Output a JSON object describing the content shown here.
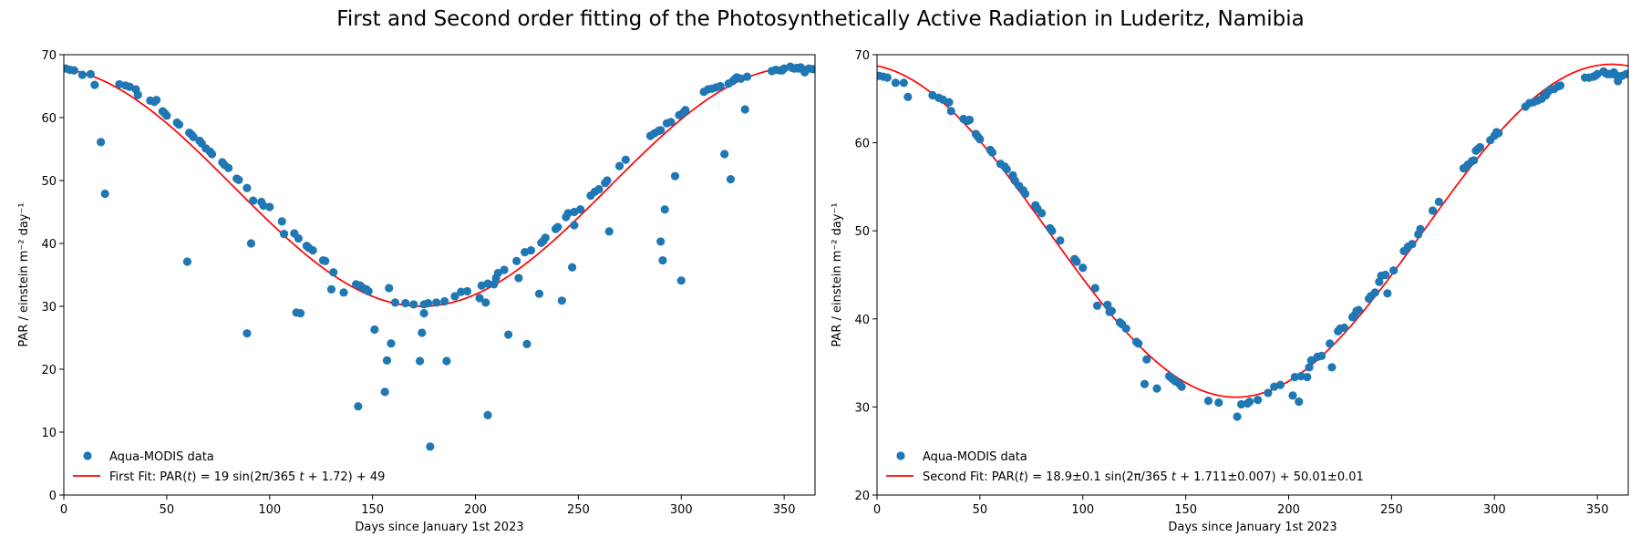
{
  "figure": {
    "title": "First and Second order fitting of the Photosynthetically Active Radiation in Luderitz, Namibia"
  },
  "colors": {
    "scatter": "#1f77b4",
    "fit": "#ff0000",
    "axes": "#000000"
  },
  "chart_data": [
    {
      "type": "scatter",
      "xlabel": "Days since January 1st 2023",
      "ylabel": "PAR / einstein m⁻² day⁻¹",
      "xlim": [
        0,
        365
      ],
      "ylim": [
        0,
        70
      ],
      "xticks": [
        0,
        50,
        100,
        150,
        200,
        250,
        300,
        350
      ],
      "yticks": [
        0,
        10,
        20,
        30,
        40,
        50,
        60,
        70
      ],
      "grid": false,
      "legend_position": "lower-left",
      "series": [
        {
          "name": "Aqua-MODIS data",
          "kind": "scatter",
          "color": "#1f77b4",
          "x": [
            1,
            3,
            5,
            9,
            13,
            15,
            18,
            20,
            27,
            30,
            32,
            35,
            36,
            42,
            44,
            45,
            48,
            49,
            50,
            55,
            56,
            60,
            61,
            62,
            63,
            66,
            67,
            69,
            71,
            72,
            77,
            78,
            80,
            84,
            85,
            89,
            89,
            91,
            92,
            96,
            97,
            100,
            106,
            107,
            112,
            113,
            114,
            115,
            118,
            119,
            121,
            126,
            127,
            130,
            131,
            136,
            142,
            143,
            144,
            145,
            147,
            148,
            151,
            156,
            157,
            158,
            159,
            161,
            166,
            170,
            173,
            174,
            175,
            175,
            177,
            178,
            181,
            185,
            186,
            190,
            193,
            196,
            202,
            203,
            205,
            206,
            206,
            209,
            210,
            211,
            214,
            216,
            220,
            221,
            224,
            225,
            227,
            231,
            232,
            233,
            234,
            239,
            240,
            242,
            244,
            245,
            247,
            248,
            248,
            251,
            256,
            258,
            260,
            263,
            264,
            265,
            270,
            273,
            285,
            287,
            289,
            290,
            290,
            291,
            292,
            293,
            295,
            297,
            299,
            300,
            301,
            302,
            311,
            313,
            315,
            317,
            319,
            321,
            323,
            324,
            325,
            326,
            327,
            329,
            331,
            332,
            344,
            346,
            348,
            349,
            350,
            353,
            354,
            355,
            356,
            357,
            358,
            359,
            360,
            362,
            364
          ],
          "y": [
            67.8,
            67.6,
            67.5,
            66.8,
            66.9,
            65.2,
            56.1,
            47.9,
            65.3,
            65.1,
            64.9,
            64.5,
            63.6,
            62.7,
            62.5,
            62.8,
            61.0,
            60.7,
            60.3,
            59.2,
            58.9,
            37.1,
            57.6,
            57.3,
            56.9,
            56.3,
            55.9,
            55.1,
            54.6,
            54.2,
            52.9,
            52.5,
            52.0,
            50.3,
            50.1,
            48.8,
            25.7,
            40.0,
            46.8,
            46.6,
            46.0,
            45.8,
            43.5,
            41.5,
            41.6,
            29.0,
            40.8,
            28.9,
            39.6,
            39.3,
            38.9,
            37.3,
            37.2,
            32.7,
            35.4,
            32.2,
            33.5,
            14.1,
            33.3,
            33.0,
            32.7,
            32.4,
            26.3,
            16.4,
            21.4,
            32.9,
            24.1,
            30.6,
            30.5,
            30.3,
            21.3,
            25.8,
            28.9,
            30.3,
            30.5,
            7.7,
            30.6,
            30.8,
            21.3,
            31.6,
            32.3,
            32.4,
            31.3,
            33.3,
            30.6,
            33.6,
            12.7,
            33.5,
            34.5,
            35.3,
            35.8,
            25.5,
            37.2,
            34.5,
            38.6,
            24.0,
            38.9,
            32.0,
            40.1,
            40.4,
            40.9,
            42.3,
            42.6,
            30.9,
            44.2,
            44.8,
            36.2,
            45.0,
            42.9,
            45.4,
            47.6,
            48.2,
            48.6,
            49.6,
            50.0,
            41.9,
            52.3,
            53.3,
            57.1,
            57.5,
            57.9,
            58.0,
            40.3,
            37.3,
            45.4,
            59.1,
            59.3,
            50.7,
            60.4,
            34.1,
            60.8,
            61.2,
            64.1,
            64.5,
            64.6,
            64.8,
            65.0,
            54.2,
            65.4,
            50.2,
            65.8,
            66.1,
            66.4,
            66.2,
            61.3,
            66.5,
            67.4,
            67.6,
            67.5,
            67.5,
            67.8,
            68.1,
            67.9,
            67.8,
            67.9,
            67.8,
            68.0,
            67.7,
            67.2,
            67.8,
            67.7
          ]
        },
        {
          "name": "First Fit: PAR(t) = 19 sin(2π/365 t + 1.72) + 49",
          "kind": "line",
          "color": "#ff0000",
          "function": {
            "amplitude": 19,
            "phase": 1.72,
            "offset": 49,
            "period": 365
          }
        }
      ]
    },
    {
      "type": "scatter",
      "xlabel": "Days since January 1st 2023",
      "ylabel": "PAR / einstein m⁻² day⁻¹",
      "xlim": [
        0,
        365
      ],
      "ylim": [
        20,
        70
      ],
      "xticks": [
        0,
        50,
        100,
        150,
        200,
        250,
        300,
        350
      ],
      "yticks": [
        20,
        30,
        40,
        50,
        60,
        70
      ],
      "grid": false,
      "legend_position": "lower-left",
      "series": [
        {
          "name": "Aqua-MODIS data",
          "kind": "scatter",
          "color": "#1f77b4",
          "x": [
            1,
            3,
            5,
            9,
            13,
            15,
            27,
            30,
            32,
            35,
            36,
            42,
            44,
            45,
            48,
            49,
            50,
            55,
            56,
            60,
            62,
            63,
            66,
            67,
            69,
            71,
            72,
            77,
            78,
            80,
            84,
            85,
            89,
            96,
            97,
            100,
            106,
            107,
            112,
            113,
            114,
            118,
            119,
            121,
            126,
            127,
            130,
            131,
            136,
            142,
            143,
            144,
            145,
            147,
            148,
            161,
            166,
            175,
            177,
            180,
            181,
            185,
            190,
            193,
            196,
            202,
            203,
            205,
            206,
            209,
            210,
            211,
            214,
            216,
            220,
            221,
            224,
            225,
            227,
            231,
            232,
            233,
            234,
            239,
            240,
            242,
            244,
            245,
            247,
            248,
            251,
            256,
            258,
            260,
            263,
            264,
            270,
            273,
            285,
            287,
            289,
            290,
            291,
            292,
            293,
            298,
            300,
            301,
            302,
            315,
            317,
            319,
            321,
            323,
            324,
            325,
            326,
            327,
            329,
            331,
            332,
            344,
            346,
            348,
            349,
            350,
            353,
            354,
            355,
            356,
            357,
            358,
            359,
            360,
            362,
            364
          ],
          "y": [
            67.6,
            67.5,
            67.4,
            66.8,
            66.8,
            65.2,
            65.4,
            65.1,
            64.9,
            64.6,
            63.6,
            62.7,
            62.5,
            62.6,
            61.0,
            60.7,
            60.4,
            59.2,
            58.9,
            57.6,
            57.3,
            57.0,
            56.3,
            55.7,
            55.1,
            54.6,
            54.2,
            52.9,
            52.5,
            52.0,
            50.3,
            50.0,
            48.9,
            46.8,
            46.5,
            45.8,
            43.5,
            41.5,
            41.6,
            40.8,
            40.9,
            39.6,
            39.4,
            38.9,
            37.4,
            37.2,
            32.6,
            35.4,
            32.1,
            33.5,
            33.3,
            33.1,
            32.9,
            32.6,
            32.3,
            30.7,
            30.5,
            28.9,
            30.3,
            30.4,
            30.6,
            30.8,
            31.6,
            32.3,
            32.5,
            31.3,
            33.4,
            30.6,
            33.5,
            33.4,
            34.5,
            35.3,
            35.7,
            35.8,
            37.2,
            34.5,
            38.6,
            38.9,
            39.0,
            40.2,
            40.4,
            40.9,
            41.0,
            42.3,
            42.6,
            43.0,
            44.2,
            44.9,
            45.0,
            42.9,
            45.5,
            47.7,
            48.2,
            48.5,
            49.6,
            50.2,
            52.3,
            53.3,
            57.1,
            57.5,
            57.9,
            58.0,
            59.1,
            59.3,
            59.5,
            60.3,
            60.8,
            61.2,
            61.1,
            64.1,
            64.5,
            64.6,
            64.8,
            65.0,
            65.3,
            65.4,
            65.8,
            66.0,
            66.1,
            66.4,
            66.5,
            67.4,
            67.4,
            67.5,
            67.6,
            67.8,
            68.1,
            67.9,
            67.8,
            67.8,
            67.8,
            68.0,
            67.7,
            67.0,
            67.6,
            67.8
          ]
        },
        {
          "name": "Second Fit: PAR(t) = 18.9±0.1 sin(2π/365 t + 1.711±0.007) + 50.01±0.01",
          "kind": "line",
          "color": "#ff0000",
          "function": {
            "amplitude": 18.9,
            "phase": 1.711,
            "offset": 50.01,
            "period": 365
          }
        }
      ]
    }
  ]
}
